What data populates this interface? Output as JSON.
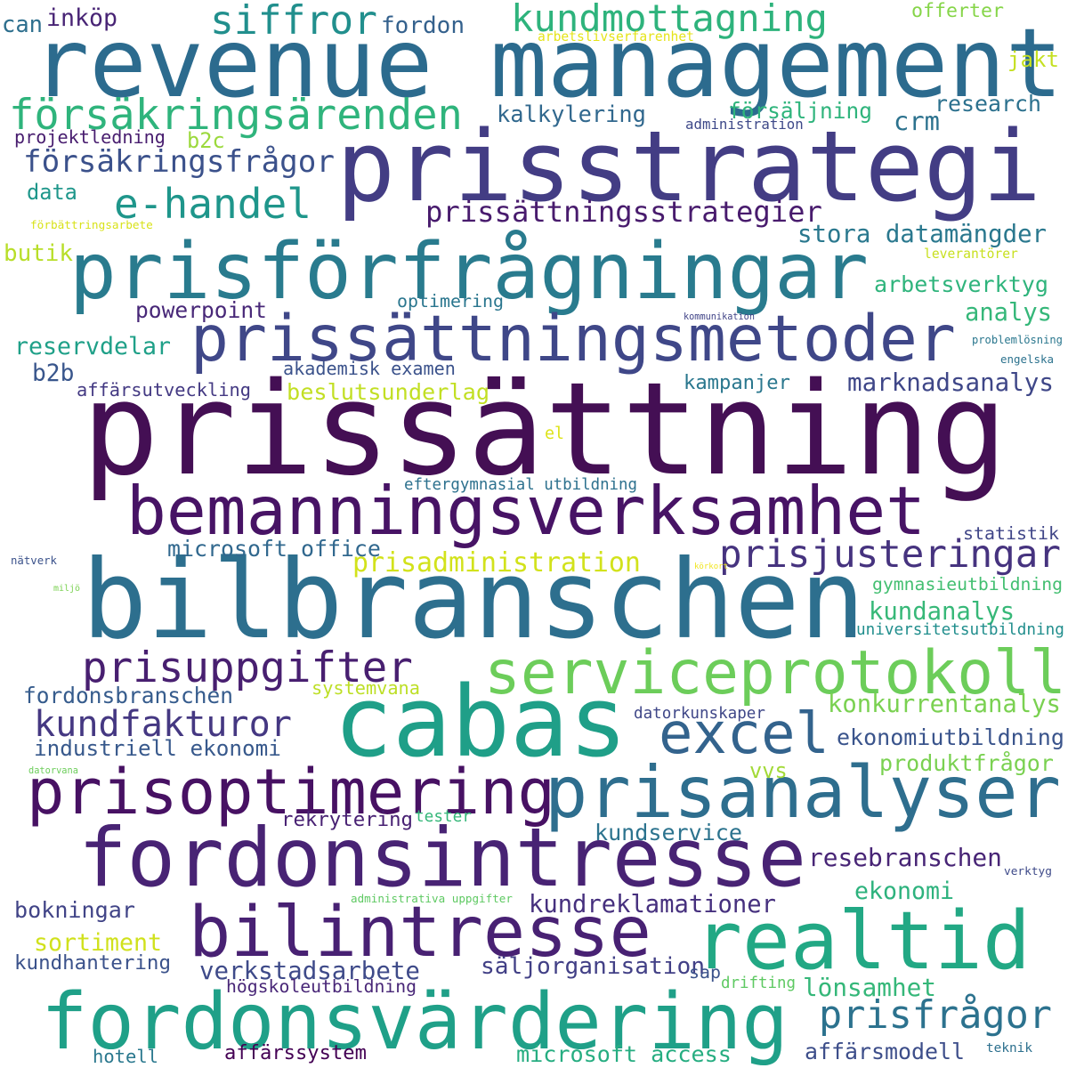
{
  "cloud": {
    "background": "#ffffff",
    "words": [
      {
        "text": "prissättning",
        "color": "#440f54"
      },
      {
        "text": "revenue management",
        "color": "#2c6b8e"
      },
      {
        "text": "prisstrategi",
        "color": "#433d84"
      },
      {
        "text": "prisförfrågningar",
        "color": "#297b8e"
      },
      {
        "text": "bilbranschen",
        "color": "#2d6f8e"
      },
      {
        "text": "cabas",
        "color": "#1f9f88"
      },
      {
        "text": "prissättningsmetoder",
        "color": "#3f4788"
      },
      {
        "text": "bemanningsverksamhet",
        "color": "#471365"
      },
      {
        "text": "serviceprotokoll",
        "color": "#6ccd5a"
      },
      {
        "text": "fordonsintresse",
        "color": "#482374"
      },
      {
        "text": "prisanalyser",
        "color": "#2e6e8e"
      },
      {
        "text": "prisoptimering",
        "color": "#471163"
      },
      {
        "text": "realtid",
        "color": "#22a884"
      },
      {
        "text": "bilintresse",
        "color": "#482173"
      },
      {
        "text": "fordonsvärdering",
        "color": "#1fa088"
      },
      {
        "text": "excel",
        "color": "#33638d"
      },
      {
        "text": "prisuppgifter",
        "color": "#481f70"
      },
      {
        "text": "försäkringsärenden",
        "color": "#2fb47c"
      },
      {
        "text": "siffror",
        "color": "#218f8d"
      },
      {
        "text": "kundmottagning",
        "color": "#2eb37c"
      },
      {
        "text": "e-handel",
        "color": "#1f968b"
      },
      {
        "text": "försäkringsfrågor",
        "color": "#3b518b"
      },
      {
        "text": "prissättningsstrategier",
        "color": "#481b6d"
      },
      {
        "text": "prisjusteringar",
        "color": "#46337f"
      },
      {
        "text": "prisfrågor",
        "color": "#2c728e"
      },
      {
        "text": "kundfakturor",
        "color": "#453882"
      },
      {
        "text": "lönsamhet",
        "color": "#35b779"
      },
      {
        "text": "prisadministration",
        "color": "#d2e21b"
      },
      {
        "text": "verkstadsarbete",
        "color": "#3e4a89"
      },
      {
        "text": "kundreklamationer",
        "color": "#46307e"
      },
      {
        "text": "säljorganisation",
        "color": "#424086"
      },
      {
        "text": "sortiment",
        "color": "#d0e11c"
      },
      {
        "text": "marknadsanalys",
        "color": "#3f4788"
      },
      {
        "text": "konkurrentanalys",
        "color": "#7ad151"
      },
      {
        "text": "resebranschen",
        "color": "#482576"
      },
      {
        "text": "microsoft office",
        "color": "#31688e"
      },
      {
        "text": "industriell ekonomi",
        "color": "#38598c"
      },
      {
        "text": "beslutsunderlag",
        "color": "#c2df23"
      },
      {
        "text": "fordonsbranschen",
        "color": "#365c8d"
      },
      {
        "text": "kundanalys",
        "color": "#37b878"
      },
      {
        "text": "ekonomiutbildning",
        "color": "#3a548c"
      },
      {
        "text": "produktfrågor",
        "color": "#7ad151"
      },
      {
        "text": "ekonomi",
        "color": "#2db27d"
      },
      {
        "text": "affärsmodell",
        "color": "#3d4e8a"
      },
      {
        "text": "microsoft access",
        "color": "#26ad81"
      },
      {
        "text": "stora datamängder",
        "color": "#2a788e"
      },
      {
        "text": "arbetsverktyg",
        "color": "#2fb47c"
      },
      {
        "text": "analys",
        "color": "#35b779"
      },
      {
        "text": "reservdelar",
        "color": "#1fa088"
      },
      {
        "text": "kundservice",
        "color": "#2c738e"
      },
      {
        "text": "kalkylering",
        "color": "#31688e"
      },
      {
        "text": "research",
        "color": "#2c718e"
      },
      {
        "text": "bokningar",
        "color": "#414487"
      },
      {
        "text": "kundhantering",
        "color": "#3b528b"
      },
      {
        "text": "powerpoint",
        "color": "#482878"
      },
      {
        "text": "affärsutveckling",
        "color": "#443a83"
      },
      {
        "text": "rekrytering",
        "color": "#482173"
      },
      {
        "text": "statistik",
        "color": "#404688"
      },
      {
        "text": "crm",
        "color": "#2c728e"
      },
      {
        "text": "inköp",
        "color": "#482475"
      },
      {
        "text": "fordon",
        "color": "#34618d"
      },
      {
        "text": "försäljning",
        "color": "#2fb47c"
      },
      {
        "text": "akademisk examen",
        "color": "#3b528b"
      },
      {
        "text": "affärssystem",
        "color": "#440154"
      },
      {
        "text": "kampanjer",
        "color": "#2a778e"
      },
      {
        "text": "universitetsutbildning",
        "color": "#218e8d"
      },
      {
        "text": "gymnasieutbildning",
        "color": "#43bf71"
      },
      {
        "text": "datorkunskaper",
        "color": "#3f4788"
      },
      {
        "text": "högskoleutbildning",
        "color": "#482677"
      },
      {
        "text": "systemvana",
        "color": "#bddf26"
      },
      {
        "text": "hotell",
        "color": "#2a788e"
      },
      {
        "text": "eftergymnasial utbildning",
        "color": "#2d718e"
      },
      {
        "text": "optimering",
        "color": "#2a768e"
      },
      {
        "text": "projektledning",
        "color": "#481d6f"
      },
      {
        "text": "butik",
        "color": "#b8de29"
      },
      {
        "text": "b2b",
        "color": "#39568c"
      },
      {
        "text": "b2c",
        "color": "#9bd93c"
      },
      {
        "text": "data",
        "color": "#1f978b"
      },
      {
        "text": "jakt",
        "color": "#c5e021"
      },
      {
        "text": "offerter",
        "color": "#86d549"
      },
      {
        "text": "can",
        "color": "#2e6f8e"
      },
      {
        "text": "vvs",
        "color": "#a2da37"
      },
      {
        "text": "drifting",
        "color": "#5ec962"
      },
      {
        "text": "sap",
        "color": "#3b528b"
      },
      {
        "text": "teknik",
        "color": "#2d708e"
      },
      {
        "text": "el",
        "color": "#dde318"
      },
      {
        "text": "tester",
        "color": "#35b779"
      },
      {
        "text": "leverantörer",
        "color": "#c8e020"
      },
      {
        "text": "problemlösning",
        "color": "#2a778e"
      },
      {
        "text": "engelska",
        "color": "#2c728e"
      },
      {
        "text": "kommunikation",
        "color": "#414487"
      },
      {
        "text": "administration",
        "color": "#3e4989"
      },
      {
        "text": "arbetslivserfarenhet",
        "color": "#e5e419"
      },
      {
        "text": "förbättringsarbete",
        "color": "#d8e219"
      },
      {
        "text": "nätverk",
        "color": "#3b528b"
      },
      {
        "text": "körkort",
        "color": "#f1e51d"
      },
      {
        "text": "miljö",
        "color": "#7ad151"
      },
      {
        "text": "datorvana",
        "color": "#6ccd5a"
      },
      {
        "text": "administrativa uppgifter",
        "color": "#5ec962"
      },
      {
        "text": "verktyg",
        "color": "#3e4a89"
      }
    ]
  }
}
